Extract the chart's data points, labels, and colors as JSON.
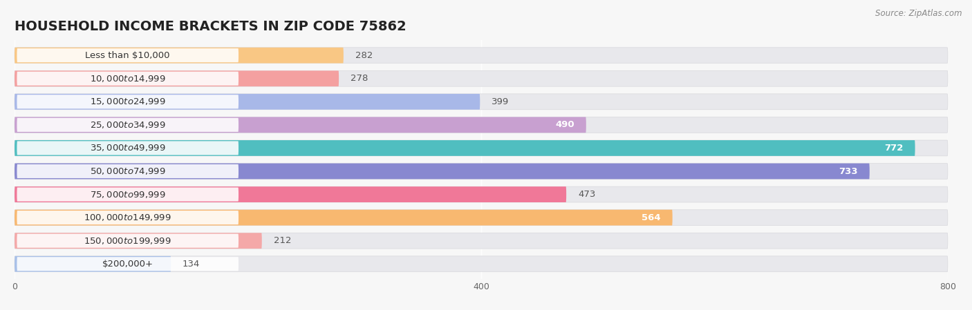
{
  "title": "HOUSEHOLD INCOME BRACKETS IN ZIP CODE 75862",
  "source": "Source: ZipAtlas.com",
  "categories": [
    "Less than $10,000",
    "$10,000 to $14,999",
    "$15,000 to $24,999",
    "$25,000 to $34,999",
    "$35,000 to $49,999",
    "$50,000 to $74,999",
    "$75,000 to $99,999",
    "$100,000 to $149,999",
    "$150,000 to $199,999",
    "$200,000+"
  ],
  "values": [
    282,
    278,
    399,
    490,
    772,
    733,
    473,
    564,
    212,
    134
  ],
  "bar_colors": [
    "#F9C784",
    "#F4A0A0",
    "#A8B8E8",
    "#C8A0D0",
    "#50BEC0",
    "#8888D0",
    "#F07898",
    "#F8B870",
    "#F4A8A8",
    "#A8C0E8"
  ],
  "background_color": "#f7f7f7",
  "bar_bg_color": "#e8e8ec",
  "xlim": [
    0,
    800
  ],
  "xticks": [
    0,
    400,
    800
  ],
  "title_fontsize": 14,
  "label_fontsize": 9.5,
  "value_fontsize": 9.5,
  "value_inside_threshold": 490
}
